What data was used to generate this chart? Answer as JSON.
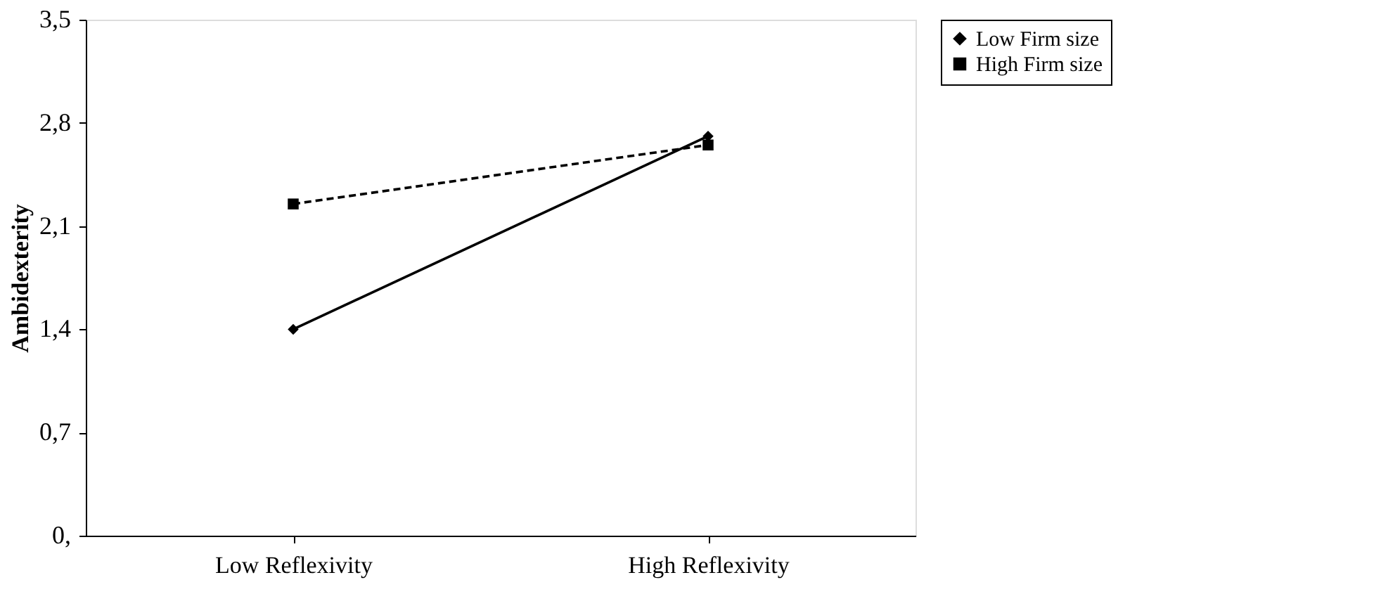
{
  "chart_data": {
    "type": "line",
    "ylabel": "Ambidexterity",
    "categories": [
      "Low Reflexivity",
      "High Reflexivity"
    ],
    "series": [
      {
        "name": "Low Firm size",
        "color": "#000000",
        "values": [
          1.4,
          2.71
        ],
        "marker": "diamond",
        "line_style": "solid"
      },
      {
        "name": "High Firm size",
        "color": "#000000",
        "values": [
          2.25,
          2.65
        ],
        "marker": "square",
        "line_style": "dashed"
      }
    ],
    "ylim": [
      0,
      3.5
    ],
    "yticks": [
      {
        "value": 0,
        "label": "0,"
      },
      {
        "value": 0.7,
        "label": "0,7"
      },
      {
        "value": 1.4,
        "label": "1,4"
      },
      {
        "value": 2.1,
        "label": "2,1"
      },
      {
        "value": 2.8,
        "label": "2,8"
      },
      {
        "value": 3.5,
        "label": "3,5"
      }
    ],
    "grid": false,
    "legend": "right"
  }
}
